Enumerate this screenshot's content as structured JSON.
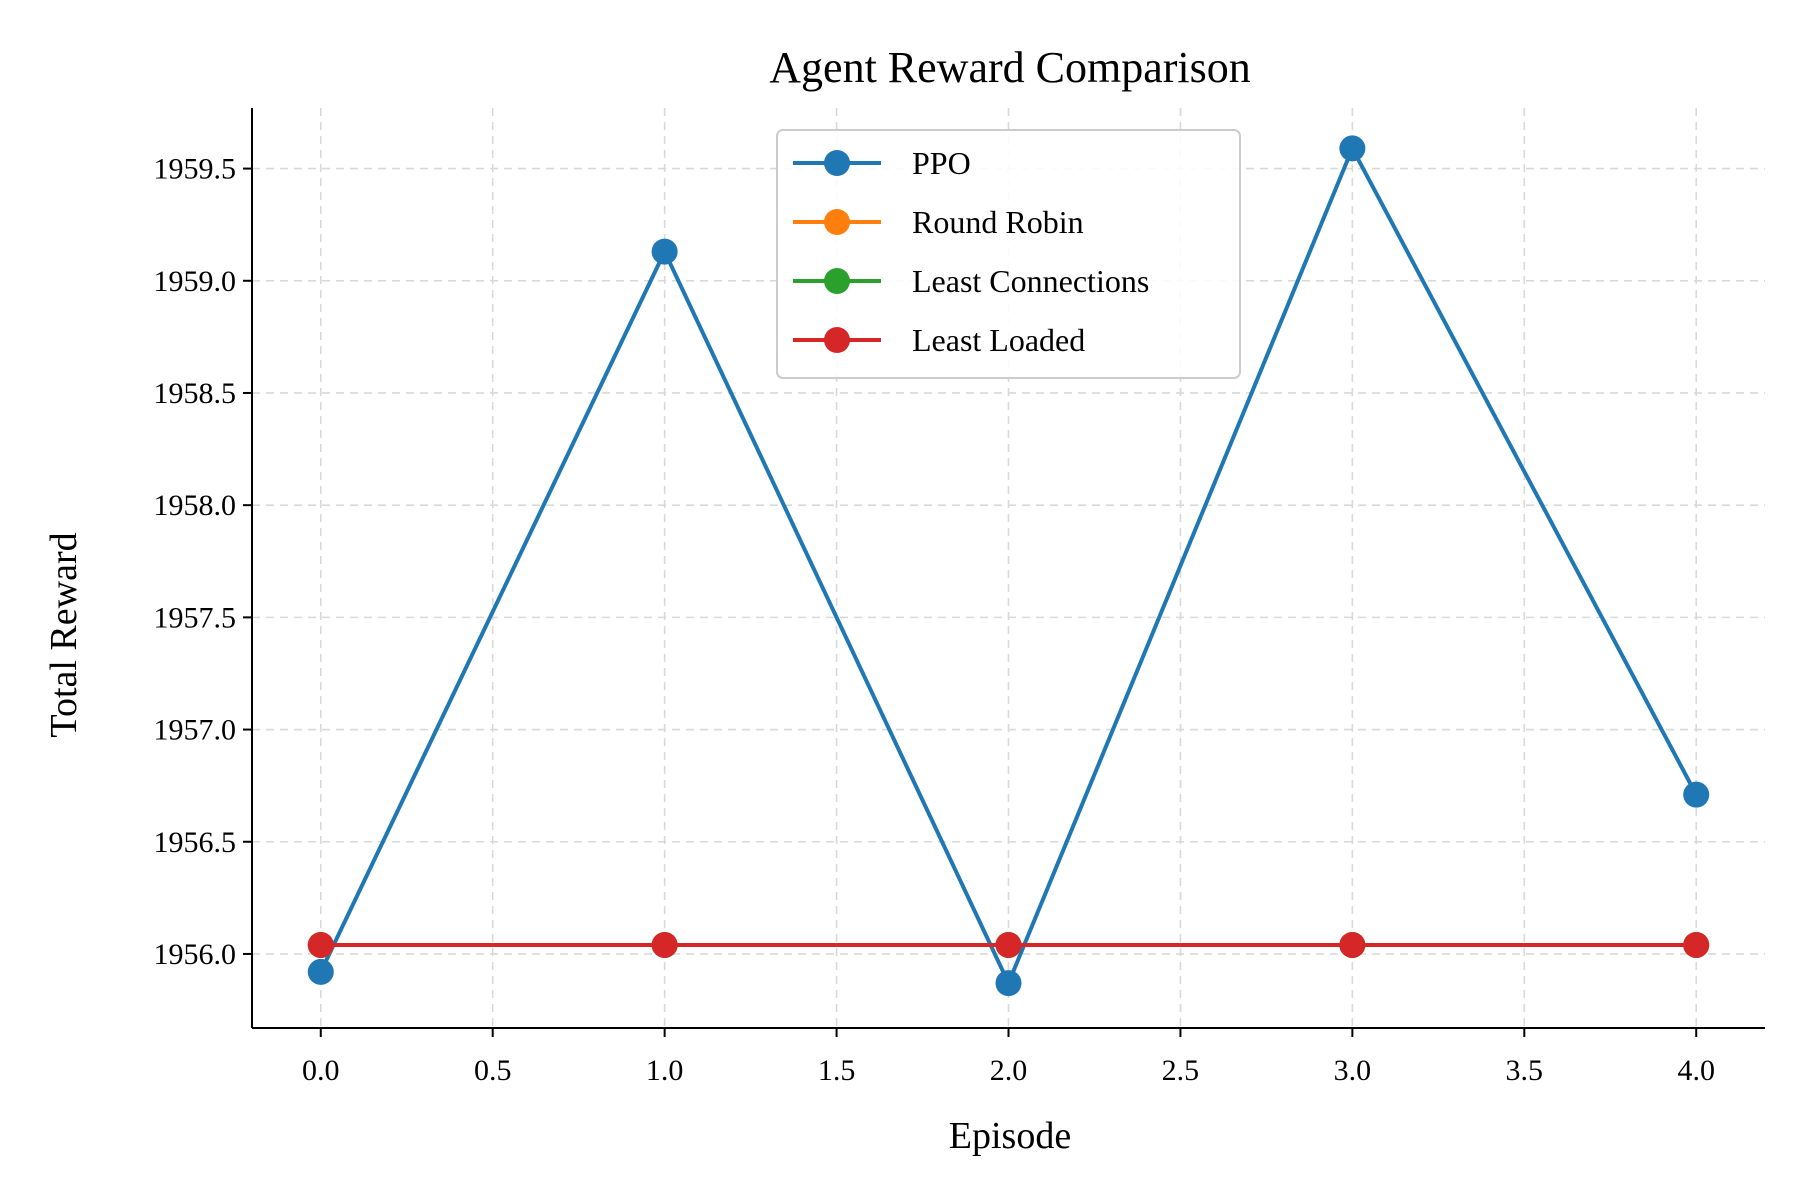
{
  "chart_data": {
    "type": "line",
    "title": "Agent Reward Comparison",
    "xlabel": "Episode",
    "ylabel": "Total Reward",
    "x": [
      0,
      1,
      2,
      3,
      4
    ],
    "xlim": [
      -0.2,
      4.2
    ],
    "ylim": [
      1955.67,
      1959.77
    ],
    "xticks": [
      0.0,
      0.5,
      1.0,
      1.5,
      2.0,
      2.5,
      3.0,
      3.5,
      4.0
    ],
    "xtick_labels": [
      "0.0",
      "0.5",
      "1.0",
      "1.5",
      "2.0",
      "2.5",
      "3.0",
      "3.5",
      "4.0"
    ],
    "yticks": [
      1956.0,
      1956.5,
      1957.0,
      1957.5,
      1958.0,
      1958.5,
      1959.0,
      1959.5
    ],
    "ytick_labels": [
      "1956.0",
      "1956.5",
      "1957.0",
      "1957.5",
      "1958.0",
      "1958.5",
      "1959.0",
      "1959.5"
    ],
    "grid": true,
    "legend_position": "top-center",
    "series": [
      {
        "name": "PPO",
        "color": "#1f77b4",
        "values": [
          1955.92,
          1959.13,
          1955.87,
          1959.59,
          1956.71
        ]
      },
      {
        "name": "Round Robin",
        "color": "#ff7f0e",
        "values": [
          1956.04,
          1956.04,
          1956.04,
          1956.04,
          1956.04
        ]
      },
      {
        "name": "Least Connections",
        "color": "#2ca02c",
        "values": [
          1956.04,
          1956.04,
          1956.04,
          1956.04,
          1956.04
        ]
      },
      {
        "name": "Least Loaded",
        "color": "#d62728",
        "values": [
          1956.04,
          1956.04,
          1956.04,
          1956.04,
          1956.04
        ]
      }
    ]
  }
}
